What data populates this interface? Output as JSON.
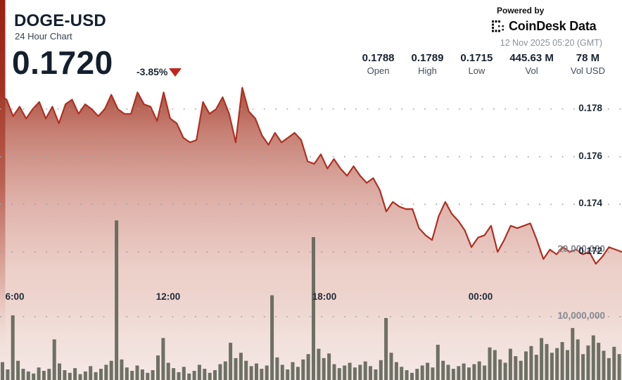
{
  "header": {
    "title": "DOGE-USD",
    "subtitle": "24 Hour Chart",
    "price": "0.1720",
    "change": "-3.85%",
    "change_direction": "down"
  },
  "attribution": {
    "powered_by": "Powered by",
    "brand": "CoinDesk Data",
    "timestamp": "12 Nov 2025 05:20 (GMT)"
  },
  "stats": [
    {
      "value": "0.1788",
      "label": "Open"
    },
    {
      "value": "0.1789",
      "label": "High"
    },
    {
      "value": "0.1715",
      "label": "Low"
    },
    {
      "value": "445.63 M",
      "label": "Vol"
    },
    {
      "value": "78 M",
      "label": "Vol USD"
    }
  ],
  "colors": {
    "line": "#ad3123",
    "area_top": "#a33a28",
    "area_bottom": "#f5eae8",
    "volume_bar": "#5c6153",
    "grid_dot": "#9aa0ab",
    "down_red": "#c1261a",
    "edge_strip": "#992114",
    "text_dark": "#141f2e"
  },
  "chart_data": {
    "type": "line",
    "title": "DOGE-USD 24 Hour Chart",
    "legend": "none",
    "grid": "dotted-horizontal",
    "x_axis": {
      "ticks": [
        "6:00",
        "12:00",
        "18:00",
        "00:00"
      ]
    },
    "price_axis": {
      "side": "right",
      "ticks": [
        0.178,
        0.176,
        0.174,
        0.172
      ],
      "range": [
        0.1705,
        0.1795
      ]
    },
    "volume_axis": {
      "side": "right",
      "ticks_millions": [
        10,
        20
      ]
    },
    "price_series": {
      "name": "DOGE-USD",
      "interval_minutes": 15,
      "values": [
        0.1786,
        0.1784,
        0.1777,
        0.1781,
        0.1776,
        0.178,
        0.1783,
        0.1776,
        0.1781,
        0.1774,
        0.1782,
        0.1784,
        0.1778,
        0.1782,
        0.178,
        0.1777,
        0.178,
        0.1786,
        0.178,
        0.1778,
        0.1778,
        0.1787,
        0.1782,
        0.1781,
        0.1775,
        0.1787,
        0.1776,
        0.1774,
        0.1768,
        0.1766,
        0.1767,
        0.1783,
        0.1778,
        0.178,
        0.1785,
        0.1778,
        0.1766,
        0.1789,
        0.1779,
        0.1776,
        0.1769,
        0.1765,
        0.177,
        0.1766,
        0.1768,
        0.177,
        0.1767,
        0.1758,
        0.1757,
        0.1761,
        0.1755,
        0.1759,
        0.1755,
        0.1752,
        0.1756,
        0.1752,
        0.1749,
        0.1751,
        0.1746,
        0.1737,
        0.1741,
        0.1739,
        0.1738,
        0.1738,
        0.173,
        0.1727,
        0.1725,
        0.1735,
        0.1741,
        0.1736,
        0.1733,
        0.1729,
        0.1722,
        0.1726,
        0.1727,
        0.1731,
        0.172,
        0.1725,
        0.1731,
        0.173,
        0.1731,
        0.1732,
        0.1725,
        0.1717,
        0.1721,
        0.1719,
        0.1722,
        0.172,
        0.1721,
        0.1719,
        0.172,
        0.1715,
        0.1718,
        0.1722,
        0.1721,
        0.172
      ]
    },
    "volume_series": {
      "name": "Volume",
      "unit": "millions",
      "values": [
        3.2,
        2.1,
        10.2,
        3.4,
        2.2,
        1.8,
        1.5,
        2.4,
        1.9,
        2.2,
        6.6,
        3.0,
        2.0,
        1.6,
        2.3,
        1.4,
        1.8,
        2.6,
        1.7,
        2.2,
        2.8,
        3.4,
        24.4,
        3.6,
        2.4,
        1.9,
        2.7,
        2.1,
        1.6,
        2.0,
        4.2,
        6.8,
        3.1,
        2.3,
        1.7,
        2.5,
        1.5,
        1.9,
        2.8,
        2.2,
        1.6,
        2.0,
        2.9,
        3.3,
        6.1,
        3.8,
        4.6,
        3.4,
        2.6,
        3.0,
        2.2,
        2.7,
        13.2,
        3.9,
        2.8,
        2.1,
        3.2,
        2.5,
        3.6,
        4.4,
        21.9,
        5.2,
        3.8,
        4.5,
        2.9,
        2.3,
        2.7,
        3.1,
        2.4,
        2.8,
        3.3,
        2.6,
        2.1,
        3.5,
        9.8,
        4.6,
        3.2,
        2.5,
        2.0,
        1.6,
        2.2,
        2.7,
        3.1,
        2.4,
        5.8,
        3.4,
        2.8,
        2.2,
        2.6,
        3.0,
        2.4,
        2.9,
        3.3,
        2.7,
        5.4,
        5.0,
        3.6,
        3.1,
        5.2,
        4.1,
        3.4,
        4.8,
        5.6,
        4.3,
        6.8,
        5.9,
        4.6,
        5.3,
        6.2,
        5.0,
        8.3,
        6.6,
        4.4,
        5.7,
        7.2,
        6.1,
        4.9,
        3.8,
        5.5,
        4.4
      ]
    }
  }
}
